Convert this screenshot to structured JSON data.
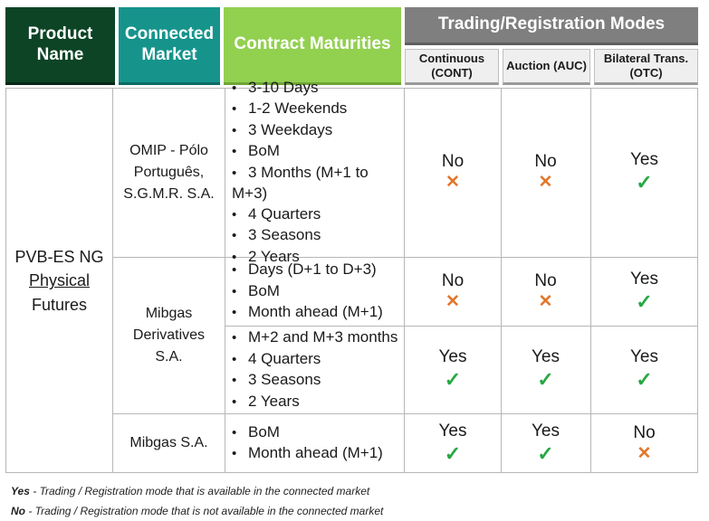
{
  "header": {
    "product_name": "Product Name",
    "connected_market": "Connected Market",
    "contract_maturities": "Contract Maturities",
    "modes_title": "Trading/Registration Modes",
    "continuous": "Continuous (CONT)",
    "auction": "Auction (AUC)",
    "bilateral": "Bilateral Trans. (OTC)"
  },
  "product": {
    "line1": "PVB-ES NG",
    "line2": "Physical",
    "line3": "Futures"
  },
  "markets": {
    "omip": "OMIP - Pólo Português, S.G.M.R. S.A.",
    "mibgas_derivatives": "Mibgas Derivatives S.A.",
    "mibgas": "Mibgas S.A."
  },
  "rows": [
    {
      "maturities": [
        "3-10 Days",
        "1-2 Weekends",
        "3 Weekdays",
        "BoM",
        "3 Months (M+1 to M+3)",
        "4 Quarters",
        "3 Seasons",
        "2 Years"
      ],
      "cont": "No",
      "auc": "No",
      "otc": "Yes"
    },
    {
      "maturities": [
        "Days (D+1 to D+3)",
        "BoM",
        "Month ahead (M+1)"
      ],
      "cont": "No",
      "auc": "No",
      "otc": "Yes"
    },
    {
      "maturities": [
        "M+2 and M+3 months",
        "4 Quarters",
        "3 Seasons",
        "2 Years"
      ],
      "cont": "Yes",
      "auc": "Yes",
      "otc": "Yes"
    },
    {
      "maturities": [
        "BoM",
        "Month ahead (M+1)"
      ],
      "cont": "Yes",
      "auc": "Yes",
      "otc": "No"
    }
  ],
  "symbols": {
    "yes": "✓",
    "no": "✕",
    "yes_color": "#27a844",
    "no_color": "#e2762b"
  },
  "footnotes": {
    "yes_label": "Yes",
    "yes_text": " - Trading  / Registration mode that is available in the connected market",
    "no_label": "No",
    "no_text": " - Trading / Registration mode that is not available in the connected market"
  }
}
